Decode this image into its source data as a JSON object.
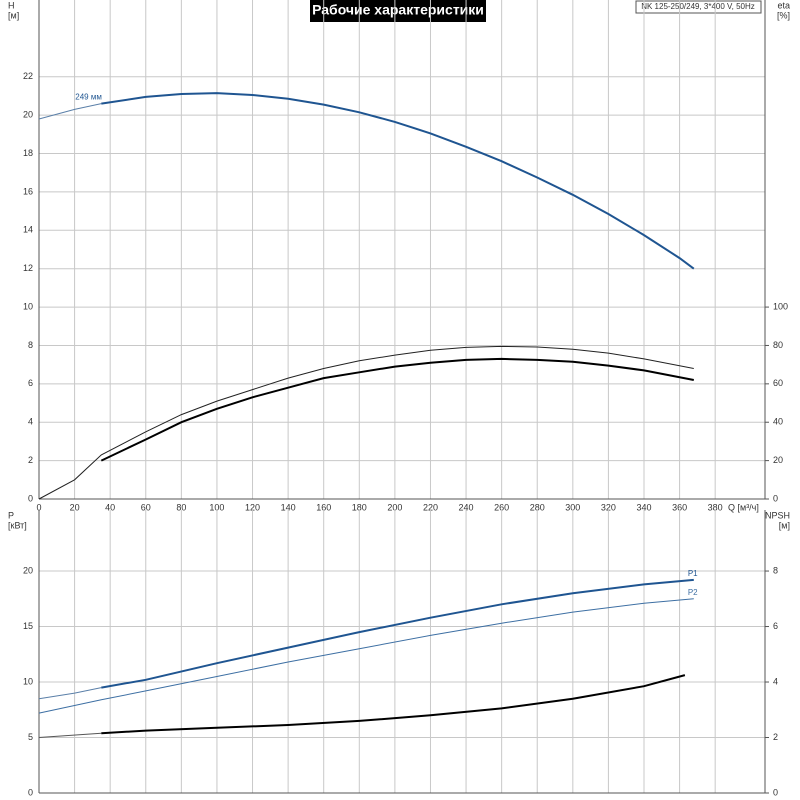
{
  "title": "Рабочие характеристики",
  "model": "NK 125-250/249, 3*400 V, 50Hz",
  "chart_data": [
    {
      "type": "line",
      "x_label": "Q [м³/ч]",
      "y_label": [
        "H",
        "[м]"
      ],
      "y2_label": [
        "eta",
        "[%]"
      ],
      "xlim": [
        0,
        408
      ],
      "xticks": [
        0,
        20,
        40,
        60,
        80,
        100,
        120,
        140,
        160,
        180,
        200,
        220,
        240,
        260,
        280,
        300,
        320,
        340,
        360,
        380
      ],
      "ylim": [
        0,
        26
      ],
      "yticks": [
        0,
        2,
        4,
        6,
        8,
        10,
        12,
        14,
        16,
        18,
        20,
        22
      ],
      "y2lim": [
        0,
        260
      ],
      "y2ticks": [
        0,
        20,
        40,
        60,
        80,
        100
      ],
      "grid": true,
      "series": [
        {
          "color": "#5a7fa8",
          "width": 1,
          "x": [
            0,
            20,
            35
          ],
          "values": [
            19.8,
            20.3,
            20.6
          ]
        },
        {
          "color": "#1f5591",
          "width": 2,
          "label": "249 мм",
          "x": [
            35,
            60,
            80,
            100,
            120,
            140,
            160,
            180,
            200,
            220,
            240,
            260,
            280,
            300,
            320,
            340,
            360,
            368
          ],
          "values": [
            20.6,
            20.95,
            21.1,
            21.15,
            21.05,
            20.85,
            20.55,
            20.15,
            19.65,
            19.05,
            18.35,
            17.6,
            16.75,
            15.85,
            14.85,
            13.75,
            12.55,
            12.0
          ]
        },
        {
          "color": "#222222",
          "width": 1,
          "axis": "y2",
          "x": [
            0,
            20,
            35,
            60,
            80,
            100,
            120,
            140,
            160,
            180,
            200,
            220,
            240,
            260,
            280,
            300,
            320,
            340,
            368
          ],
          "values": [
            0,
            10,
            23,
            35,
            44,
            51,
            57,
            63,
            68,
            72,
            75,
            77.5,
            79,
            79.5,
            79.2,
            78,
            76,
            73,
            68
          ]
        },
        {
          "color": "#000000",
          "width": 2,
          "axis": "y2",
          "x": [
            35,
            60,
            80,
            100,
            120,
            140,
            160,
            180,
            200,
            220,
            240,
            260,
            280,
            300,
            320,
            340,
            368
          ],
          "values": [
            20,
            31,
            40,
            47,
            53,
            58,
            63,
            66,
            69,
            71,
            72.5,
            73,
            72.5,
            71.5,
            69.5,
            67,
            62
          ]
        }
      ]
    },
    {
      "type": "line",
      "y_label": [
        "P",
        "[кВт]"
      ],
      "y2_label": [
        "NPSH",
        "[м]"
      ],
      "xlim": [
        0,
        408
      ],
      "xticks": [
        0,
        20,
        40,
        60,
        80,
        100,
        120,
        140,
        160,
        180,
        200,
        220,
        240,
        260,
        280,
        300,
        320,
        340,
        360,
        380
      ],
      "ylim": [
        0,
        25.5
      ],
      "yticks": [
        0,
        5,
        10,
        15,
        20
      ],
      "y2lim": [
        0,
        10.2
      ],
      "y2ticks": [
        0,
        2,
        4,
        6,
        8
      ],
      "grid": true,
      "series": [
        {
          "color": "#5a7fa8",
          "width": 1,
          "x": [
            0,
            20,
            35
          ],
          "values": [
            8.5,
            9.0,
            9.5
          ]
        },
        {
          "color": "#1f5591",
          "width": 2,
          "label": "P1",
          "x": [
            35,
            60,
            100,
            140,
            180,
            220,
            260,
            300,
            340,
            368
          ],
          "values": [
            9.5,
            10.2,
            11.7,
            13.1,
            14.5,
            15.8,
            17.0,
            18.0,
            18.8,
            19.2
          ]
        },
        {
          "color": "#3d6fa3",
          "width": 1,
          "label": "P2",
          "x": [
            0,
            35,
            60,
            100,
            140,
            180,
            220,
            260,
            300,
            340,
            368
          ],
          "values": [
            7.2,
            8.4,
            9.2,
            10.5,
            11.8,
            13.0,
            14.2,
            15.3,
            16.3,
            17.1,
            17.5
          ]
        },
        {
          "color": "#555555",
          "width": 1,
          "axis": "y2",
          "x": [
            0,
            35
          ],
          "values": [
            2.0,
            2.15
          ]
        },
        {
          "color": "#000000",
          "width": 2,
          "axis": "y2",
          "x": [
            35,
            60,
            100,
            140,
            180,
            220,
            260,
            300,
            340,
            363
          ],
          "values": [
            2.15,
            2.25,
            2.35,
            2.45,
            2.6,
            2.8,
            3.05,
            3.4,
            3.85,
            4.25
          ]
        }
      ]
    }
  ]
}
